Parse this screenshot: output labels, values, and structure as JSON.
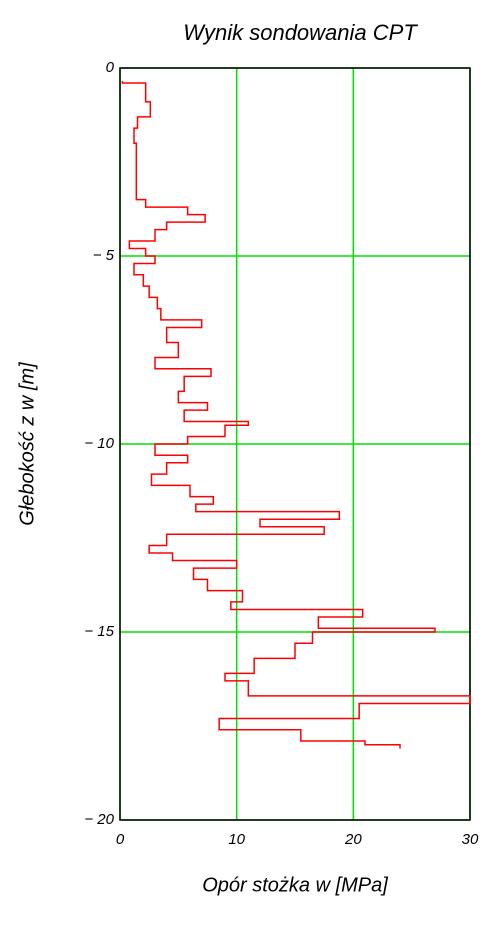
{
  "chart_data": {
    "type": "line",
    "title": "Wynik sondowania CPT",
    "x_label": "Opór stożka w [MPa]",
    "y_label": "Głebokość z w [m]",
    "color": "#ff0000",
    "grid": true,
    "grid_color": "#00e000",
    "xlim": [
      0,
      30
    ],
    "xticks": [
      0,
      10,
      20,
      30
    ],
    "ylim": [
      -20,
      0
    ],
    "yticks": [
      0,
      {
        "value": -5,
        "label": "− 5"
      },
      {
        "value": -10,
        "label": "− 10"
      },
      {
        "value": -15,
        "label": "− 15"
      },
      {
        "value": -20,
        "label": "− 20"
      }
    ],
    "x": [
      0.2,
      0.2,
      2.2,
      2.2,
      2.6,
      2.6,
      1.5,
      1.5,
      1.2,
      1.2,
      1.4,
      1.4,
      2.2,
      2.2,
      5.8,
      5.8,
      7.3,
      7.3,
      4.0,
      4.0,
      3.0,
      3.0,
      0.8,
      0.8,
      2.2,
      2.2,
      3.0,
      3.0,
      1.2,
      1.2,
      2.0,
      2.0,
      2.5,
      2.5,
      3.2,
      3.2,
      3.5,
      3.5,
      7.0,
      7.0,
      4.0,
      4.0,
      5.0,
      5.0,
      3.0,
      3.0,
      7.8,
      7.8,
      5.5,
      5.5,
      5.0,
      5.0,
      7.5,
      7.5,
      5.5,
      5.5,
      11.0,
      11.0,
      9.0,
      9.0,
      5.8,
      5.8,
      3.0,
      3.0,
      5.8,
      5.8,
      4.0,
      4.0,
      2.7,
      2.7,
      6.0,
      6.0,
      8.0,
      8.0,
      6.5,
      6.5,
      18.8,
      18.8,
      12.0,
      12.0,
      17.5,
      17.5,
      4.0,
      4.0,
      2.5,
      2.5,
      4.5,
      4.5,
      10.0,
      10.0,
      6.3,
      6.3,
      7.5,
      7.5,
      10.5,
      10.5,
      9.5,
      9.5,
      20.8,
      20.8,
      17.0,
      17.0,
      27.0,
      27.0,
      16.5,
      16.5,
      15.0,
      15.0,
      11.5,
      11.5,
      9.0,
      9.0,
      11.0,
      11.0,
      30.0,
      30.0,
      20.5,
      20.5,
      8.5,
      8.5,
      15.5,
      15.5,
      21.0,
      21.0,
      24.0,
      24.0
    ],
    "values": [
      -0.35,
      -0.4,
      -0.4,
      -0.9,
      -0.9,
      -1.3,
      -1.3,
      -1.6,
      -1.6,
      -2.0,
      -2.0,
      -3.5,
      -3.5,
      -3.7,
      -3.7,
      -3.9,
      -3.9,
      -4.1,
      -4.1,
      -4.3,
      -4.3,
      -4.6,
      -4.6,
      -4.8,
      -4.8,
      -5.0,
      -5.0,
      -5.2,
      -5.2,
      -5.5,
      -5.5,
      -5.8,
      -5.8,
      -6.1,
      -6.1,
      -6.4,
      -6.4,
      -6.7,
      -6.7,
      -6.9,
      -6.9,
      -7.3,
      -7.3,
      -7.7,
      -7.7,
      -8.0,
      -8.0,
      -8.2,
      -8.2,
      -8.6,
      -8.6,
      -8.9,
      -8.9,
      -9.1,
      -9.1,
      -9.4,
      -9.4,
      -9.5,
      -9.5,
      -9.8,
      -9.8,
      -10.0,
      -10.0,
      -10.3,
      -10.3,
      -10.5,
      -10.5,
      -10.8,
      -10.8,
      -11.1,
      -11.1,
      -11.4,
      -11.4,
      -11.6,
      -11.6,
      -11.8,
      -11.8,
      -12.0,
      -12.0,
      -12.2,
      -12.2,
      -12.4,
      -12.4,
      -12.7,
      -12.7,
      -12.9,
      -12.9,
      -13.1,
      -13.1,
      -13.3,
      -13.3,
      -13.6,
      -13.6,
      -13.9,
      -13.9,
      -14.2,
      -14.2,
      -14.4,
      -14.4,
      -14.6,
      -14.6,
      -14.9,
      -14.9,
      -15.0,
      -15.0,
      -15.3,
      -15.3,
      -15.7,
      -15.7,
      -16.1,
      -16.1,
      -16.3,
      -16.3,
      -16.7,
      -16.7,
      -16.9,
      -16.9,
      -17.3,
      -17.3,
      -17.6,
      -17.6,
      -17.9,
      -17.9,
      -18.0,
      -18.0,
      -18.1
    ]
  }
}
